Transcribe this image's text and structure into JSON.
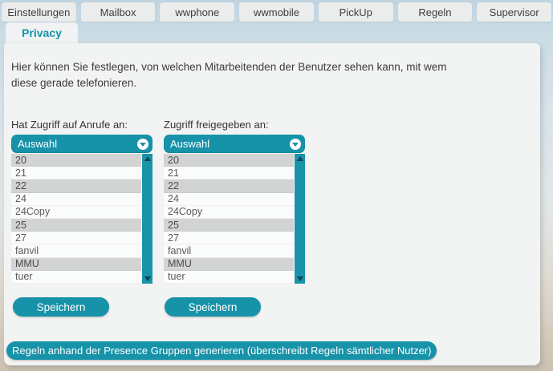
{
  "tabs": {
    "items": [
      {
        "label": "Einstellungen"
      },
      {
        "label": "Mailbox"
      },
      {
        "label": "wwphone"
      },
      {
        "label": "wwmobile"
      },
      {
        "label": "PickUp"
      },
      {
        "label": "Regeln"
      },
      {
        "label": "Supervisor"
      }
    ]
  },
  "subtab": {
    "label": "Privacy"
  },
  "intro": {
    "text": "Hier können Sie festlegen, von welchen Mitarbeitenden der Benutzer sehen kann, mit wem diese gerade telefonieren."
  },
  "columns": [
    {
      "label": "Hat Zugriff auf Anrufe an:",
      "dropdown_value": "Auswahl",
      "items": [
        {
          "label": "20",
          "selected": true
        },
        {
          "label": "21",
          "selected": false
        },
        {
          "label": "22",
          "selected": true
        },
        {
          "label": "24",
          "selected": false
        },
        {
          "label": "24Copy",
          "selected": false
        },
        {
          "label": "25",
          "selected": true
        },
        {
          "label": "27",
          "selected": false
        },
        {
          "label": "fanvil",
          "selected": false
        },
        {
          "label": "MMU",
          "selected": true
        },
        {
          "label": "tuer",
          "selected": false
        }
      ],
      "save_label": "Speichern"
    },
    {
      "label": "Zugriff freigegeben an:",
      "dropdown_value": "Auswahl",
      "items": [
        {
          "label": "20",
          "selected": true
        },
        {
          "label": "21",
          "selected": false
        },
        {
          "label": "22",
          "selected": true
        },
        {
          "label": "24",
          "selected": false
        },
        {
          "label": "24Copy",
          "selected": false
        },
        {
          "label": "25",
          "selected": true
        },
        {
          "label": "27",
          "selected": false
        },
        {
          "label": "fanvil",
          "selected": false
        },
        {
          "label": "MMU",
          "selected": true
        },
        {
          "label": "tuer",
          "selected": false
        }
      ],
      "save_label": "Speichern"
    }
  ],
  "footer": {
    "generate_label": "Regeln anhand der Presence Gruppen generieren (überschreibt Regeln sämtlicher Nutzer)"
  },
  "colors": {
    "accent_teal": "#1793a9",
    "scrollbar_arrow": "#0c4255",
    "selected_row": "#d2d3d3",
    "panel_bg": "#f2f3f3"
  }
}
